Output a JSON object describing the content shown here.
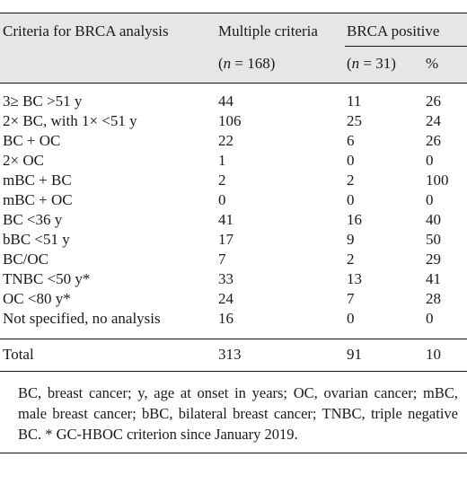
{
  "header": {
    "col0": "Criteria for BRCA analysis",
    "col1": "Multiple criteria",
    "col2": "BRCA positive",
    "n1_prefix": "(",
    "n1_var": "n",
    "n1_suffix": " = 168)",
    "n2_prefix": "(",
    "n2_var": "n",
    "n2_suffix": " = 31)",
    "pct": "%"
  },
  "rows": [
    {
      "criteria": "3≥ BC >51 y",
      "multiple": "44",
      "positive": "11",
      "pct": "26"
    },
    {
      "criteria": "2× BC, with 1× <51 y",
      "multiple": "106",
      "positive": "25",
      "pct": "24"
    },
    {
      "criteria": "BC + OC",
      "multiple": "22",
      "positive": "6",
      "pct": "26"
    },
    {
      "criteria": "2× OC",
      "multiple": "1",
      "positive": "0",
      "pct": "0"
    },
    {
      "criteria": "mBC + BC",
      "multiple": "2",
      "positive": "2",
      "pct": "100"
    },
    {
      "criteria": "mBC + OC",
      "multiple": "0",
      "positive": "0",
      "pct": "0"
    },
    {
      "criteria": "BC <36 y",
      "multiple": "41",
      "positive": "16",
      "pct": "40"
    },
    {
      "criteria": "bBC <51 y",
      "multiple": "17",
      "positive": "9",
      "pct": "50"
    },
    {
      "criteria": "BC/OC",
      "multiple": "7",
      "positive": "2",
      "pct": "29"
    },
    {
      "criteria": "TNBC <50 y*",
      "multiple": "33",
      "positive": "13",
      "pct": "41"
    },
    {
      "criteria": "OC <80 y*",
      "multiple": "24",
      "positive": "7",
      "pct": "28"
    },
    {
      "criteria": "Not specified, no analysis",
      "multiple": "16",
      "positive": "0",
      "pct": "0"
    }
  ],
  "total": {
    "criteria": "Total",
    "multiple": "313",
    "positive": "91",
    "pct": "10"
  },
  "footnote": "BC, breast cancer; y, age at onset in years; OC, ovarian cancer; mBC, male breast cancer; bBC, bilateral breast cancer; TNBC, triple negative BC. * GC-HBOC criterion since January 2019."
}
